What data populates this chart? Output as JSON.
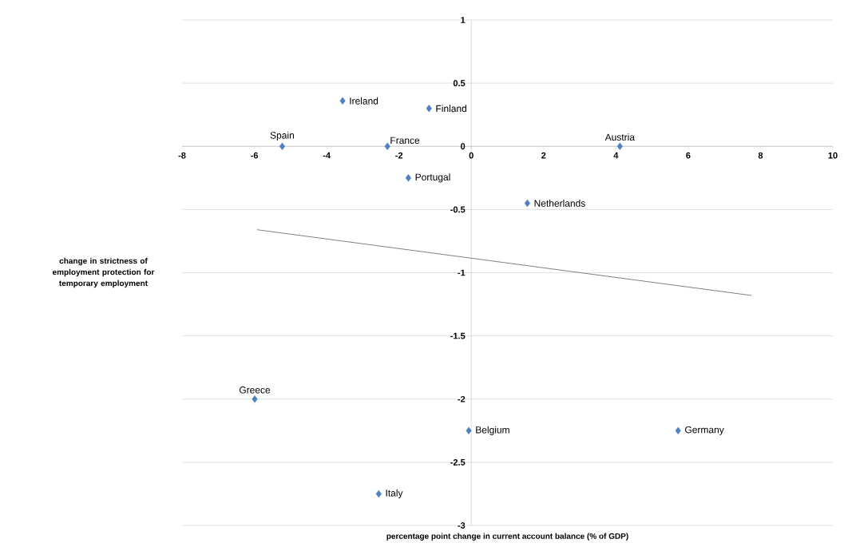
{
  "chart_data": {
    "type": "scatter",
    "xlabel": "percentage point change in  current account balance (% of GDP)",
    "ylabel": "change in strictness of employment protection for temporary employment",
    "xlim": [
      -8,
      10
    ],
    "xticks": [
      -8,
      -6,
      -4,
      -2,
      0,
      2,
      4,
      6,
      8,
      10
    ],
    "ylim": [
      -3,
      1
    ],
    "yticks": [
      -3,
      -2.5,
      -2,
      -1.5,
      -1,
      -0.5,
      0,
      0.5,
      1
    ],
    "grid": "y",
    "marker": "diamond",
    "series": [
      {
        "type": "scatter",
        "color": "#4f81bd",
        "x": [
          -3.56,
          -1.17,
          -5.23,
          -2.32,
          4.11,
          -1.74,
          1.55,
          -5.99,
          -0.07,
          5.72,
          -2.56
        ],
        "values": [
          0.36,
          0.3,
          0,
          0,
          0,
          -0.25,
          -0.45,
          -2.0,
          -2.25,
          -2.25,
          -2.75
        ]
      },
      {
        "type": "line",
        "color": "#808080",
        "marker": "none",
        "x": [
          -5.92,
          7.75
        ],
        "values": [
          -0.66,
          -1.18
        ]
      }
    ],
    "annotations": [
      {
        "text": "Ireland",
        "x": -3.56,
        "y": 0.36
      },
      {
        "text": "Finland",
        "x": -1.17,
        "y": 0.3
      },
      {
        "text": "Spain",
        "x": -5.23,
        "y": 0
      },
      {
        "text": "France",
        "x": -2.32,
        "y": 0
      },
      {
        "text": "Austria",
        "x": 4.11,
        "y": 0
      },
      {
        "text": "Portugal",
        "x": -1.74,
        "y": -0.25
      },
      {
        "text": "Netherlands",
        "x": 1.55,
        "y": -0.45
      },
      {
        "text": "Greece",
        "x": -5.99,
        "y": -2.0
      },
      {
        "text": "Belgium",
        "x": -0.07,
        "y": -2.25
      },
      {
        "text": "Germany",
        "x": 5.72,
        "y": -2.25
      },
      {
        "text": "Italy",
        "x": -2.56,
        "y": -2.75
      }
    ]
  }
}
